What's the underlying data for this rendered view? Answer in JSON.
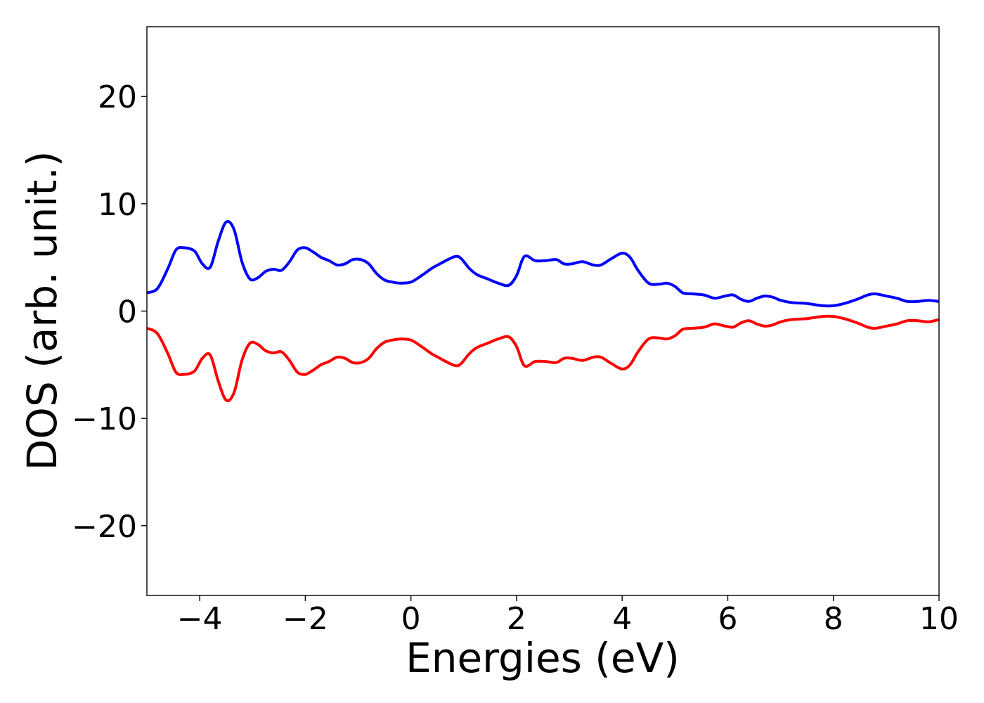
{
  "chart_data": {
    "type": "line",
    "title": "",
    "xlabel": "Energies (eV)",
    "ylabel": "DOS (arb. unit.)",
    "xlim": [
      -5,
      10
    ],
    "ylim": [
      -26.5,
      26.5
    ],
    "grid": false,
    "legend": "none",
    "x_ticks": [
      -4,
      -2,
      0,
      2,
      4,
      6,
      8,
      10
    ],
    "x_tick_labels": [
      "−4",
      "−2",
      "0",
      "2",
      "4",
      "6",
      "8",
      "10"
    ],
    "y_ticks": [
      20,
      10,
      0,
      -10,
      -20
    ],
    "y_tick_labels": [
      "20",
      "10",
      "0",
      "−10",
      "−20"
    ],
    "x": [
      -5.0,
      -4.8,
      -4.6,
      -4.45,
      -4.3,
      -4.1,
      -3.95,
      -3.8,
      -3.65,
      -3.5,
      -3.35,
      -3.2,
      -3.05,
      -2.9,
      -2.75,
      -2.6,
      -2.45,
      -2.3,
      -2.15,
      -2.0,
      -1.85,
      -1.7,
      -1.55,
      -1.4,
      -1.25,
      -1.1,
      -0.95,
      -0.8,
      -0.65,
      -0.5,
      -0.35,
      -0.2,
      0.0,
      0.2,
      0.4,
      0.55,
      0.7,
      0.85,
      0.95,
      1.1,
      1.25,
      1.45,
      1.65,
      1.85,
      2.0,
      2.15,
      2.35,
      2.55,
      2.75,
      2.9,
      3.05,
      3.25,
      3.45,
      3.6,
      3.8,
      4.0,
      4.15,
      4.3,
      4.5,
      4.7,
      4.85,
      5.0,
      5.15,
      5.35,
      5.55,
      5.75,
      5.95,
      6.1,
      6.25,
      6.4,
      6.55,
      6.7,
      6.85,
      7.0,
      7.2,
      7.5,
      7.8,
      8.0,
      8.2,
      8.45,
      8.65,
      8.8,
      9.0,
      9.2,
      9.4,
      9.6,
      9.8,
      10.0
    ],
    "series": [
      {
        "color": "#0000ff",
        "values": [
          1.7,
          2.1,
          4.0,
          5.7,
          5.9,
          5.6,
          4.4,
          4.1,
          6.5,
          8.3,
          7.6,
          4.6,
          3.0,
          3.1,
          3.7,
          3.9,
          3.8,
          4.6,
          5.7,
          5.9,
          5.5,
          5.0,
          4.7,
          4.3,
          4.4,
          4.8,
          4.8,
          4.4,
          3.5,
          2.9,
          2.7,
          2.6,
          2.7,
          3.3,
          4.0,
          4.4,
          4.8,
          5.1,
          4.9,
          4.0,
          3.4,
          3.0,
          2.6,
          2.4,
          3.3,
          5.1,
          4.7,
          4.7,
          4.8,
          4.4,
          4.4,
          4.6,
          4.3,
          4.3,
          4.9,
          5.4,
          5.0,
          3.8,
          2.6,
          2.5,
          2.6,
          2.3,
          1.7,
          1.6,
          1.5,
          1.2,
          1.4,
          1.5,
          1.1,
          0.9,
          1.2,
          1.4,
          1.3,
          1.0,
          0.8,
          0.7,
          0.5,
          0.5,
          0.7,
          1.1,
          1.5,
          1.6,
          1.4,
          1.2,
          0.9,
          0.9,
          1.0,
          0.9
        ]
      },
      {
        "color": "#ff0000",
        "values": [
          -1.6,
          -2.1,
          -4.0,
          -5.7,
          -5.9,
          -5.6,
          -4.4,
          -4.1,
          -6.5,
          -8.3,
          -7.6,
          -4.6,
          -3.0,
          -3.1,
          -3.7,
          -3.9,
          -3.8,
          -4.6,
          -5.7,
          -5.9,
          -5.5,
          -5.0,
          -4.7,
          -4.3,
          -4.4,
          -4.8,
          -4.8,
          -4.4,
          -3.5,
          -2.9,
          -2.7,
          -2.6,
          -2.7,
          -3.3,
          -4.0,
          -4.4,
          -4.8,
          -5.1,
          -4.9,
          -4.0,
          -3.4,
          -3.0,
          -2.6,
          -2.4,
          -3.3,
          -5.1,
          -4.7,
          -4.7,
          -4.8,
          -4.4,
          -4.4,
          -4.6,
          -4.3,
          -4.3,
          -4.9,
          -5.4,
          -5.0,
          -3.8,
          -2.6,
          -2.5,
          -2.6,
          -2.3,
          -1.7,
          -1.6,
          -1.5,
          -1.2,
          -1.4,
          -1.5,
          -1.1,
          -0.9,
          -1.2,
          -1.4,
          -1.3,
          -1.0,
          -0.8,
          -0.7,
          -0.5,
          -0.5,
          -0.7,
          -1.1,
          -1.5,
          -1.6,
          -1.4,
          -1.2,
          -0.9,
          -0.9,
          -1.0,
          -0.8
        ]
      }
    ]
  }
}
